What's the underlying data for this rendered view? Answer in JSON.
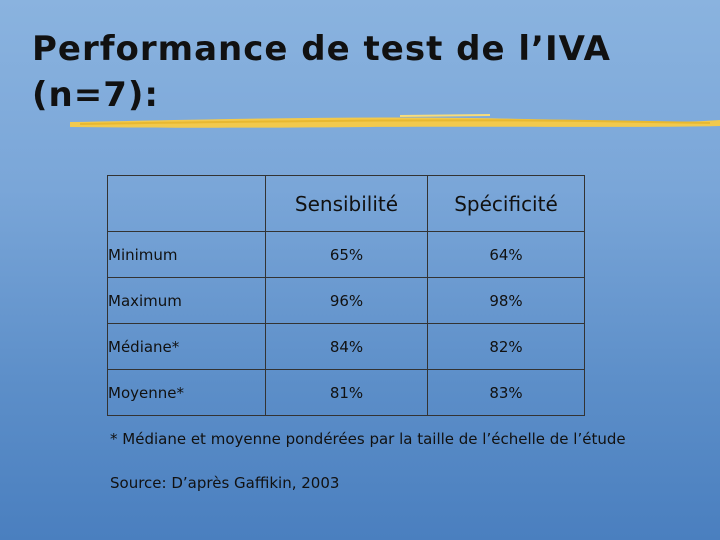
{
  "slide": {
    "title_line1": "Performance de test de l’IVA",
    "title_line2": "(n=7):",
    "accent_color": "#f2c94c"
  },
  "table": {
    "headers": [
      "",
      "Sensibilité",
      "Spécificité"
    ],
    "rows": [
      {
        "label": "Minimum",
        "sensibilite": "65%",
        "specificite": "64%"
      },
      {
        "label": "Maximum",
        "sensibilite": "96%",
        "specificite": "98%"
      },
      {
        "label": "Médiane*",
        "sensibilite": "84%",
        "specificite": "82%"
      },
      {
        "label": "Moyenne*",
        "sensibilite": "81%",
        "specificite": "83%"
      }
    ]
  },
  "footnote": "* Médiane et moyenne pondérées par la taille de l’échelle de l’étude",
  "source": "Source: D’après Gaffikin, 2003"
}
